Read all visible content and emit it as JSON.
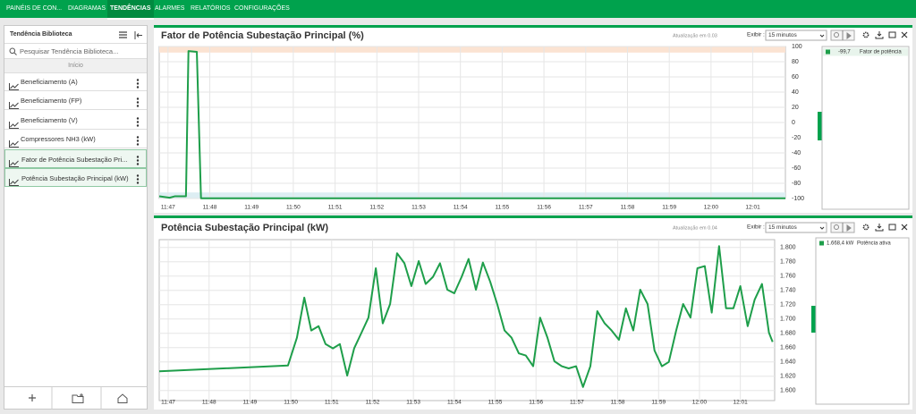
{
  "nav": {
    "items": [
      "PAINÉIS DE CON...",
      "DIAGRAMAS",
      "TENDÊNCIAS",
      "ALARMES",
      "RELATÓRIOS",
      "CONFIGURAÇÕES"
    ],
    "active": 2
  },
  "sidebar": {
    "title": "Tendência Biblioteca",
    "search_placeholder": "Pesquisar Tendência Biblioteca...",
    "section": "Início",
    "items": [
      "Beneficiamento (A)",
      "Beneficiamento (FP)",
      "Beneficiamento (V)",
      "Compressores NH3 (kW)",
      "Fator de Potência Subestação Pri...",
      "Potência Subestação Principal (kW)"
    ],
    "selected": [
      4,
      5
    ]
  },
  "chart_data": [
    {
      "type": "line",
      "title": "Fator de Potência Subestação Principal (%)",
      "update": "Atualização em 0.03",
      "show_label": "Exibir :",
      "range_option": "15 minutos",
      "x": [
        706.79,
        707.04,
        707.17,
        707.43,
        707.49,
        707.69,
        707.79,
        721.78
      ],
      "series": [
        {
          "name": "Fator de potência",
          "color": "#1e9e4a",
          "current": "-99,7",
          "values": [
            -97,
            -99,
            -97,
            -97,
            94,
            93,
            -99.7,
            -99.7
          ]
        }
      ],
      "xlim": [
        706.79,
        721.78
      ],
      "xticks": [
        {
          "value": 707,
          "label": "11:47"
        },
        {
          "value": 708,
          "label": "11:48"
        },
        {
          "value": 709,
          "label": "11:49"
        },
        {
          "value": 710,
          "label": "11:50"
        },
        {
          "value": 711,
          "label": "11:51"
        },
        {
          "value": 712,
          "label": "11:52"
        },
        {
          "value": 713,
          "label": "11:53"
        },
        {
          "value": 714,
          "label": "11:54"
        },
        {
          "value": 715,
          "label": "11:55"
        },
        {
          "value": 716,
          "label": "11:56"
        },
        {
          "value": 717,
          "label": "11:57"
        },
        {
          "value": 718,
          "label": "11:58"
        },
        {
          "value": 719,
          "label": "11:59"
        },
        {
          "value": 720,
          "label": "12:00"
        },
        {
          "value": 721,
          "label": "12:01"
        }
      ],
      "ylim": [
        -100,
        100
      ],
      "yticks": [
        100,
        80,
        60,
        40,
        20,
        0,
        -20,
        -40,
        -60,
        -80,
        -100
      ],
      "grid": true,
      "bands": [
        {
          "from": 92,
          "to": 100,
          "color": "#fbe3d2"
        },
        {
          "from": -100,
          "to": -92,
          "color": "#ddeef3"
        }
      ]
    },
    {
      "type": "line",
      "title": "Potência Subestação Principal (kW)",
      "update": "Atualização em 0.04",
      "show_label": "Exibir :",
      "range_option": "15 minutos",
      "x": [
        706.78,
        709.93,
        710.15,
        710.33,
        710.5,
        710.68,
        710.85,
        711.03,
        711.2,
        711.38,
        711.55,
        711.73,
        711.9,
        712.08,
        712.25,
        712.43,
        712.6,
        712.78,
        712.95,
        713.13,
        713.3,
        713.48,
        713.65,
        713.83,
        714.0,
        714.18,
        714.35,
        714.53,
        714.7,
        714.88,
        715.05,
        715.23,
        715.4,
        715.58,
        715.75,
        715.93,
        716.1,
        716.28,
        716.45,
        716.63,
        716.8,
        716.98,
        717.15,
        717.33,
        717.5,
        717.68,
        717.85,
        718.03,
        718.2,
        718.38,
        718.55,
        718.73,
        718.9,
        719.08,
        719.25,
        719.43,
        719.6,
        719.78,
        719.95,
        720.13,
        720.3,
        720.48,
        720.65,
        720.83,
        721.0,
        721.18,
        721.35,
        721.53,
        721.7,
        721.79
      ],
      "series": [
        {
          "name": "Potência ativa",
          "color": "#1e9e4a",
          "current": "1.668,4 kW",
          "values": [
            1627,
            1635,
            1674,
            1730,
            1684,
            1690,
            1665,
            1659,
            1665,
            1621,
            1659,
            1681,
            1702,
            1771,
            1694,
            1721,
            1792,
            1778,
            1746,
            1781,
            1749,
            1759,
            1778,
            1741,
            1736,
            1759,
            1784,
            1741,
            1779,
            1752,
            1721,
            1684,
            1674,
            1652,
            1649,
            1634,
            1702,
            1674,
            1641,
            1634,
            1631,
            1634,
            1605,
            1634,
            1711,
            1694,
            1684,
            1671,
            1715,
            1684,
            1741,
            1721,
            1656,
            1634,
            1640,
            1684,
            1721,
            1702,
            1771,
            1774,
            1709,
            1802,
            1715,
            1715,
            1746,
            1690,
            1727,
            1749,
            1681,
            1668
          ]
        }
      ],
      "xlim": [
        706.78,
        721.84
      ],
      "xticks": [
        {
          "value": 707,
          "label": "11:47"
        },
        {
          "value": 708,
          "label": "11:48"
        },
        {
          "value": 709,
          "label": "11:49"
        },
        {
          "value": 710,
          "label": "11:50"
        },
        {
          "value": 711,
          "label": "11:51"
        },
        {
          "value": 712,
          "label": "11:52"
        },
        {
          "value": 713,
          "label": "11:53"
        },
        {
          "value": 714,
          "label": "11:54"
        },
        {
          "value": 715,
          "label": "11:55"
        },
        {
          "value": 716,
          "label": "11:56"
        },
        {
          "value": 717,
          "label": "11:57"
        },
        {
          "value": 718,
          "label": "11:58"
        },
        {
          "value": 719,
          "label": "11:59"
        },
        {
          "value": 720,
          "label": "12:00"
        },
        {
          "value": 721,
          "label": "12:01"
        }
      ],
      "ylim": [
        1586,
        1811
      ],
      "yticks": [
        {
          "value": 1600,
          "label": "1.600"
        },
        {
          "value": 1620,
          "label": "1.620"
        },
        {
          "value": 1640,
          "label": "1.640"
        },
        {
          "value": 1660,
          "label": "1.660"
        },
        {
          "value": 1680,
          "label": "1.680"
        },
        {
          "value": 1700,
          "label": "1.700"
        },
        {
          "value": 1720,
          "label": "1.720"
        },
        {
          "value": 1740,
          "label": "1.740"
        },
        {
          "value": 1760,
          "label": "1.760"
        },
        {
          "value": 1780,
          "label": "1.780"
        },
        {
          "value": 1800,
          "label": "1.800"
        }
      ],
      "grid": true,
      "bands": []
    }
  ]
}
